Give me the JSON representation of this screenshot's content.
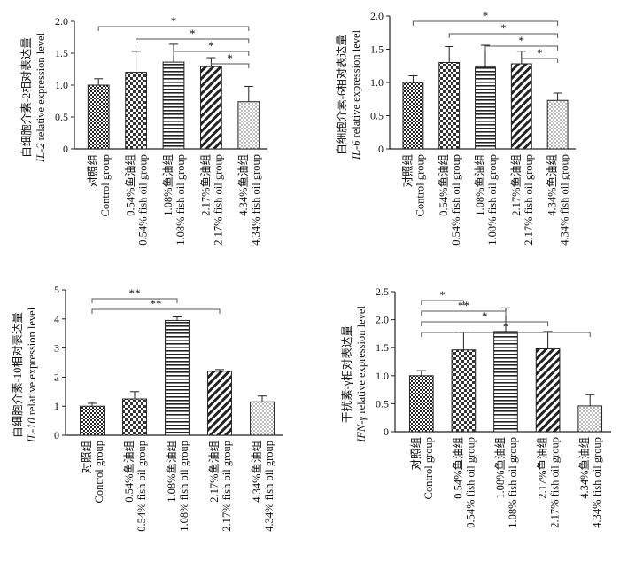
{
  "chart_data": [
    {
      "type": "bar",
      "ylabel_cn": "白细胞介素-2相对表达量",
      "ylabel_gene": "IL-2",
      "ylabel_en": "relative expression level",
      "ylim": [
        0,
        2.0
      ],
      "yticks": [
        "0",
        "0.5",
        "1.0",
        "1.5",
        "2.0"
      ],
      "categories": [
        {
          "cn": "对照组",
          "en": "Control group"
        },
        {
          "cn": "0.54%鱼油组",
          "en": "0.54% fish oil group"
        },
        {
          "cn": "1.08%鱼油组",
          "en": "1.08% fish oil group"
        },
        {
          "cn": "2.17%鱼油组",
          "en": "2.17% fish oil group"
        },
        {
          "cn": "4.34%鱼油组",
          "en": "4.34% fish oil group"
        }
      ],
      "values": [
        1.0,
        1.2,
        1.36,
        1.29,
        0.74
      ],
      "errors": [
        0.1,
        0.33,
        0.28,
        0.14,
        0.24
      ],
      "significance": [
        {
          "from": 0,
          "to": 4,
          "label": "*"
        },
        {
          "from": 1,
          "to": 4,
          "label": "*"
        },
        {
          "from": 2,
          "to": 4,
          "label": "*"
        },
        {
          "from": 3,
          "to": 4,
          "label": "*"
        }
      ]
    },
    {
      "type": "bar",
      "ylabel_cn": "白细胞介素-6相对表达量",
      "ylabel_gene": "IL-6",
      "ylabel_en": "relative expression level",
      "ylim": [
        0,
        2.0
      ],
      "yticks": [
        "0",
        "0.5",
        "1.0",
        "1.5",
        "2.0"
      ],
      "categories": [
        {
          "cn": "对照组",
          "en": "Control group"
        },
        {
          "cn": "0.54%鱼油组",
          "en": "0.54% fish oil group"
        },
        {
          "cn": "1.08%鱼油组",
          "en": "1.08% fish oil group"
        },
        {
          "cn": "2.17%鱼油组",
          "en": "2.17% fish oil group"
        },
        {
          "cn": "4.34%鱼油组",
          "en": "4.34% fish oil group"
        }
      ],
      "values": [
        1.0,
        1.3,
        1.23,
        1.28,
        0.73
      ],
      "errors": [
        0.1,
        0.24,
        0.33,
        0.19,
        0.11
      ],
      "significance": [
        {
          "from": 0,
          "to": 4,
          "label": "*"
        },
        {
          "from": 1,
          "to": 4,
          "label": "*"
        },
        {
          "from": 2,
          "to": 4,
          "label": "*"
        },
        {
          "from": 3,
          "to": 4,
          "label": "*"
        }
      ]
    },
    {
      "type": "bar",
      "ylabel_cn": "白细胞介素-10相对表达量",
      "ylabel_gene": "IL-10",
      "ylabel_en": "relative expression level",
      "ylim": [
        0,
        5
      ],
      "yticks": [
        "0",
        "1",
        "2",
        "3",
        "4",
        "5"
      ],
      "categories": [
        {
          "cn": "对照组",
          "en": "Control group"
        },
        {
          "cn": "0.54%鱼油组",
          "en": "0.54% fish oil group"
        },
        {
          "cn": "1.08%鱼油组",
          "en": "1.08% fish oil group"
        },
        {
          "cn": "2.17%鱼油组",
          "en": "2.17% fish oil group"
        },
        {
          "cn": "4.34%鱼油组",
          "en": "4.34% fish oil group"
        }
      ],
      "values": [
        1.0,
        1.25,
        3.95,
        2.2,
        1.15
      ],
      "errors": [
        0.1,
        0.25,
        0.12,
        0.06,
        0.2
      ],
      "significance": [
        {
          "from": 0,
          "to": 2,
          "label": "**"
        },
        {
          "from": 0,
          "to": 3,
          "label": "**"
        }
      ]
    },
    {
      "type": "bar",
      "ylabel_cn": "干扰素-γ相对表达量",
      "ylabel_gene": "IFN-γ",
      "ylabel_en": "relative expression level",
      "ylim": [
        0,
        2.5
      ],
      "yticks": [
        "0",
        "0.5",
        "1.0",
        "1.5",
        "2.0",
        "2.5"
      ],
      "categories": [
        {
          "cn": "对照组",
          "en": "Control group"
        },
        {
          "cn": "0.54%鱼油组",
          "en": "0.54% fish oil group"
        },
        {
          "cn": "1.08%鱼油组",
          "en": "1.08% fish oil group"
        },
        {
          "cn": "2.17%鱼油组",
          "en": "2.17% fish oil group"
        },
        {
          "cn": "4.34%鱼油组",
          "en": "4.34% fish oil group"
        }
      ],
      "values": [
        1.0,
        1.46,
        1.79,
        1.48,
        0.46
      ],
      "errors": [
        0.09,
        0.32,
        0.42,
        0.31,
        0.2
      ],
      "significance": [
        {
          "from": 0,
          "to": 1,
          "label": "*"
        },
        {
          "from": 0,
          "to": 2,
          "label": "**"
        },
        {
          "from": 0,
          "to": 3,
          "label": "*"
        },
        {
          "from": 0,
          "to": 4,
          "label": "*"
        }
      ]
    }
  ]
}
